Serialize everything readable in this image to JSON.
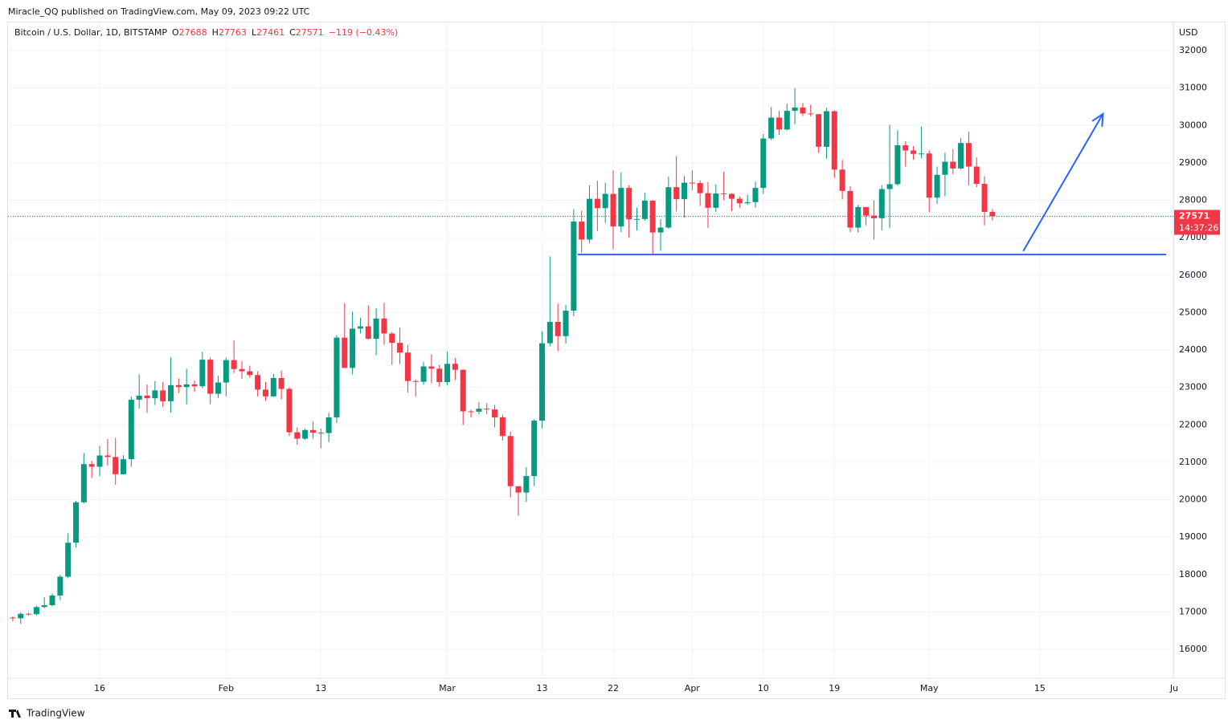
{
  "publisher": "Miracle_QQ published on TradingView.com, May 09, 2023 09:22 UTC",
  "footer": "TradingView",
  "chart_data": {
    "type": "candlestick",
    "title": "Bitcoin / U.S. Dollar, 1D, BITSTAMP",
    "ohlc_labels": [
      "O",
      "H",
      "L",
      "C"
    ],
    "change": "−119 (−0.43%)",
    "currency": "USD",
    "countdown": "14:37:26",
    "up_color": "#089981",
    "down_color": "#f23645",
    "grid": true,
    "x": [
      5,
      6,
      7,
      8,
      9,
      10,
      11,
      12,
      13,
      14,
      15,
      16,
      17,
      18,
      19,
      20,
      21,
      22,
      23,
      24,
      25,
      26,
      27,
      28,
      29,
      30,
      31,
      32,
      33,
      34,
      35,
      36,
      37,
      38,
      39,
      40,
      41,
      42,
      43,
      44,
      45,
      46,
      47,
      48,
      49,
      50,
      51,
      52,
      53,
      54,
      55,
      56,
      57,
      58,
      59,
      60,
      61,
      62,
      63,
      64,
      65,
      66,
      67,
      68,
      69,
      70,
      71,
      72,
      73,
      74,
      75,
      76,
      77,
      78,
      79,
      80,
      81,
      82,
      83,
      84,
      85,
      86,
      87,
      88,
      89,
      90,
      91,
      92,
      93,
      94,
      95,
      96,
      97,
      98,
      99,
      100,
      101,
      102,
      103,
      104,
      105,
      106,
      107,
      108,
      109,
      110,
      111,
      112,
      113,
      114,
      115,
      116,
      117,
      118,
      119,
      120,
      121,
      122,
      123,
      124,
      125,
      126,
      127,
      128,
      129
    ],
    "open": [
      16850,
      16830,
      16950,
      16940,
      17130,
      17180,
      17440,
      17940,
      18850,
      19930,
      20950,
      20880,
      21180,
      21140,
      20680,
      21080,
      22670,
      22780,
      22710,
      22920,
      22630,
      23060,
      23010,
      23080,
      23030,
      23740,
      22830,
      23130,
      23730,
      23490,
      23430,
      23330,
      22940,
      22760,
      23250,
      22960,
      21800,
      21630,
      21860,
      21790,
      21780,
      22200,
      24330,
      23520,
      24570,
      24630,
      24300,
      24840,
      24440,
      24190,
      23930,
      23170,
      23150,
      23560,
      23500,
      23140,
      23630,
      23470,
      22360,
      22350,
      22430,
      22410,
      22200,
      21700,
      20360,
      20190,
      20630,
      22110,
      24180,
      24750,
      24370,
      25050,
      27430,
      26950,
      28040,
      27790,
      28170,
      27300,
      28330,
      27490,
      27500,
      27990,
      27140,
      27270,
      28350,
      28030,
      28470,
      28460,
      28190,
      27800,
      28180,
      28170,
      28040,
      27920,
      27950,
      28330,
      29650,
      30210,
      29890,
      30390,
      30480,
      30320,
      30300,
      29430,
      30380,
      28820,
      28250,
      27270,
      27820,
      27590,
      27520,
      28300,
      28430,
      29470,
      29330,
      29240,
      29250,
      28070,
      28680,
      29030,
      28850,
      29530,
      28900,
      28440,
      27688
    ],
    "high": [
      16880,
      16990,
      16980,
      17170,
      17390,
      17490,
      17990,
      19100,
      19970,
      21240,
      21030,
      21440,
      21620,
      21650,
      21190,
      22750,
      23350,
      23080,
      23170,
      23140,
      23800,
      23240,
      23500,
      23180,
      23950,
      23800,
      23310,
      23800,
      24250,
      23700,
      23580,
      23430,
      23150,
      23360,
      23450,
      23000,
      21930,
      21900,
      22090,
      21900,
      22320,
      24400,
      25250,
      25020,
      24860,
      25190,
      25120,
      25260,
      24480,
      24600,
      24130,
      23210,
      23680,
      23880,
      23600,
      23950,
      23780,
      23480,
      22400,
      22610,
      22580,
      22530,
      22270,
      21820,
      20360,
      20870,
      22150,
      24500,
      26500,
      25240,
      25200,
      27760,
      27720,
      28400,
      28520,
      28470,
      28800,
      28750,
      28400,
      27800,
      28200,
      28000,
      27500,
      28630,
      29180,
      28650,
      28800,
      28530,
      28490,
      28430,
      28760,
      28190,
      28100,
      28150,
      28500,
      29770,
      30490,
      30390,
      30580,
      31000,
      30600,
      30550,
      30310,
      30470,
      30400,
      29080,
      28380,
      27880,
      27820,
      28000,
      28400,
      30020,
      29870,
      29580,
      29450,
      29970,
      29330,
      28900,
      29270,
      29370,
      29670,
      29830,
      29150,
      28640,
      27763
    ],
    "low": [
      16750,
      16680,
      16900,
      16910,
      17100,
      17150,
      17320,
      17900,
      18720,
      19900,
      20580,
      20630,
      20900,
      20400,
      20670,
      20880,
      22440,
      22320,
      22530,
      22480,
      22330,
      22850,
      22550,
      22880,
      22980,
      22550,
      22720,
      22760,
      23380,
      23230,
      23260,
      22760,
      22640,
      22750,
      22680,
      21700,
      21460,
      21600,
      21630,
      21370,
      21540,
      22050,
      23550,
      23350,
      24440,
      24280,
      23860,
      24140,
      23600,
      23620,
      22860,
      22750,
      23070,
      23110,
      23020,
      23050,
      23200,
      22000,
      22200,
      22280,
      22280,
      21930,
      21580,
      20060,
      19570,
      19940,
      20360,
      21900,
      24100,
      23970,
      24170,
      24900,
      26600,
      26850,
      27180,
      27400,
      26690,
      27150,
      27000,
      27190,
      27450,
      26550,
      26650,
      27240,
      27700,
      27540,
      28270,
      27850,
      27260,
      27680,
      28000,
      27710,
      27800,
      27880,
      27800,
      28170,
      29610,
      29740,
      29870,
      30030,
      30250,
      30240,
      29270,
      29110,
      28600,
      28020,
      27150,
      27140,
      27330,
      26950,
      27200,
      27250,
      28390,
      28900,
      29080,
      29120,
      27680,
      27900,
      28110,
      28690,
      28820,
      28400,
      28350,
      27330,
      27461
    ],
    "close": [
      16830,
      16950,
      16940,
      17130,
      17180,
      17440,
      17940,
      18850,
      19930,
      20950,
      20880,
      21180,
      21140,
      20680,
      21080,
      22670,
      22780,
      22710,
      22920,
      22630,
      23060,
      23010,
      23080,
      23030,
      23740,
      22830,
      23130,
      23730,
      23490,
      23430,
      23330,
      22940,
      22760,
      23250,
      22960,
      21800,
      21630,
      21860,
      21790,
      21780,
      22200,
      24330,
      23520,
      24570,
      24630,
      24300,
      24840,
      24440,
      24190,
      23930,
      23170,
      23150,
      23560,
      23500,
      23140,
      23630,
      23470,
      22360,
      22350,
      22430,
      22410,
      22200,
      21700,
      20360,
      20190,
      20630,
      22110,
      24180,
      24750,
      24370,
      25050,
      27430,
      26950,
      28040,
      27790,
      28170,
      27300,
      28330,
      27490,
      27500,
      27990,
      27140,
      27270,
      28350,
      28030,
      28470,
      28460,
      28190,
      27800,
      28180,
      28170,
      28040,
      27920,
      27950,
      28330,
      29650,
      30210,
      29890,
      30390,
      30480,
      30320,
      30300,
      29430,
      30380,
      28820,
      28250,
      27270,
      27820,
      27590,
      27520,
      28300,
      28430,
      29470,
      29330,
      29240,
      29250,
      28070,
      28680,
      29030,
      28850,
      29530,
      28900,
      28440,
      27690,
      27571
    ],
    "xlim": [
      4.4,
      151.9
    ],
    "xticks": [
      {
        "value": 16,
        "label": "16"
      },
      {
        "value": 32,
        "label": "Feb"
      },
      {
        "value": 44,
        "label": "13"
      },
      {
        "value": 60,
        "label": "Mar"
      },
      {
        "value": 72,
        "label": "13"
      },
      {
        "value": 81,
        "label": "22"
      },
      {
        "value": 91,
        "label": "Apr"
      },
      {
        "value": 100,
        "label": "10"
      },
      {
        "value": 109,
        "label": "19"
      },
      {
        "value": 121,
        "label": "May"
      },
      {
        "value": 135,
        "label": "15"
      },
      {
        "value": 152,
        "label": "Ju"
      }
    ],
    "ylim": [
      15228,
      32751
    ],
    "yticks": [
      16000,
      17000,
      18000,
      19000,
      20000,
      21000,
      22000,
      23000,
      24000,
      25000,
      26000,
      27000,
      28000,
      29000,
      30000,
      31000,
      32000
    ],
    "support_line": {
      "x": [
        76.5,
        151
      ],
      "y": 26550,
      "color": "#2962ff"
    },
    "arrow": {
      "x": [
        132.9,
        143
      ],
      "y": [
        26640,
        30310
      ],
      "color": "#2962ff"
    }
  }
}
